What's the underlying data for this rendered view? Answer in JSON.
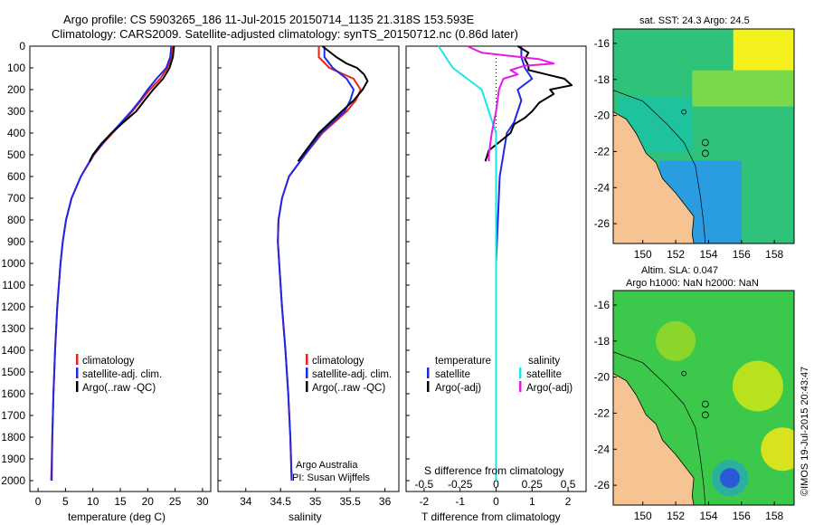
{
  "header": {
    "line1": "Argo profile: CS 5903265_186 11-Jul-2015 20150714_1135 21.318S 153.593E",
    "line2": "Climatology: CARS2009. Satellite-adjusted climatology: synTS_20150712.nc (0.86d later)"
  },
  "colors": {
    "climatology": "#e6231e",
    "satellite": "#1e28e6",
    "argo": "#000000",
    "sal_satellite": "#19e6e6",
    "sal_argo": "#e619e6"
  },
  "chart_data": [
    {
      "type": "line",
      "id": "temperature",
      "xlabel": "temperature (deg C)",
      "ylabel": "",
      "xlim": [
        -1.5,
        31.5
      ],
      "ylim": [
        2060,
        0
      ],
      "xticks": [
        "0",
        "5",
        "10",
        "15",
        "20",
        "25",
        "30"
      ],
      "yticks": [
        "0",
        "100",
        "200",
        "300",
        "400",
        "500",
        "600",
        "700",
        "800",
        "900",
        "1000",
        "1100",
        "1200",
        "1300",
        "1400",
        "1500",
        "1600",
        "1700",
        "1800",
        "1900",
        "2000"
      ],
      "legend": [
        "climatology",
        "satellite-adj. clim.",
        "Argo(..raw -QC)"
      ],
      "series": [
        {
          "name": "climatology",
          "depth": [
            0,
            50,
            100,
            150,
            200,
            250,
            300,
            350,
            400,
            450,
            500,
            600,
            700,
            800,
            900,
            1000,
            1200,
            1400,
            1600,
            1800,
            2000
          ],
          "values": [
            24.6,
            24.4,
            23.6,
            22.3,
            20.4,
            18.8,
            17.2,
            15.4,
            13.6,
            11.8,
            10.2,
            7.8,
            6.1,
            5.1,
            4.5,
            4.1,
            3.5,
            3.1,
            2.8,
            2.6,
            2.4
          ]
        },
        {
          "name": "satellite-adj. clim.",
          "depth": [
            0,
            50,
            100,
            150,
            200,
            250,
            300,
            350,
            400,
            450,
            500,
            600,
            700,
            800,
            900,
            1000,
            1200,
            1400,
            1600,
            1800,
            2000
          ],
          "values": [
            24.3,
            24.1,
            23.4,
            21.6,
            20.0,
            18.6,
            17.0,
            15.2,
            13.4,
            11.7,
            10.1,
            7.8,
            6.1,
            5.1,
            4.5,
            4.1,
            3.5,
            3.1,
            2.8,
            2.6,
            2.5
          ]
        },
        {
          "name": "Argo(..raw -QC)",
          "depth": [
            0,
            50,
            100,
            150,
            200,
            250,
            300,
            350,
            400,
            450,
            500,
            530
          ],
          "values": [
            24.8,
            24.6,
            24.0,
            22.8,
            21.0,
            19.4,
            17.9,
            15.6,
            13.4,
            11.5,
            10.0,
            9.4
          ]
        }
      ]
    },
    {
      "type": "line",
      "id": "salinity",
      "xlabel": "salinity",
      "xlim": [
        33.6,
        36.2
      ],
      "ylim": [
        2060,
        0
      ],
      "xticks": [
        "34",
        "34.5",
        "35",
        "35.5",
        "36"
      ],
      "legend": [
        "climatology",
        "satellite-adj. clim.",
        "Argo(..raw -QC)"
      ],
      "series": [
        {
          "name": "climatology",
          "depth": [
            0,
            50,
            100,
            150,
            200,
            250,
            300,
            400,
            500,
            600,
            700,
            800,
            900,
            1000,
            1200,
            1400,
            1600,
            1800,
            2000
          ],
          "values": [
            35.05,
            35.05,
            35.2,
            35.55,
            35.65,
            35.58,
            35.45,
            35.1,
            34.85,
            34.62,
            34.52,
            34.47,
            34.46,
            34.48,
            34.52,
            34.57,
            34.61,
            34.64,
            34.66
          ]
        },
        {
          "name": "satellite-adj. clim.",
          "depth": [
            0,
            50,
            100,
            150,
            200,
            250,
            300,
            400,
            500,
            600,
            700,
            800,
            900,
            1000,
            1200,
            1400,
            1600,
            1800,
            2000
          ],
          "values": [
            35.13,
            35.13,
            35.25,
            35.45,
            35.55,
            35.5,
            35.42,
            35.08,
            34.85,
            34.62,
            34.52,
            34.47,
            34.46,
            34.48,
            34.52,
            34.57,
            34.61,
            34.64,
            34.66
          ]
        },
        {
          "name": "Argo(..raw -QC)",
          "depth": [
            0,
            50,
            80,
            100,
            130,
            160,
            200,
            250,
            300,
            400,
            500,
            530
          ],
          "values": [
            35.1,
            35.3,
            35.45,
            35.6,
            35.7,
            35.75,
            35.68,
            35.55,
            35.38,
            35.05,
            34.82,
            34.75
          ]
        }
      ]
    },
    {
      "type": "line",
      "id": "difference",
      "xlabel": "T difference from climatology",
      "xlabel2": "S difference from climatology",
      "xlim": [
        -2.5,
        2.5
      ],
      "ylim": [
        2060,
        0
      ],
      "xticks": [
        "-2",
        "-1",
        "0",
        "1",
        "2"
      ],
      "xticks2": [
        "-0.5",
        "-0.25",
        "0",
        "0.25",
        "0.5"
      ],
      "legend_titles": [
        "temperature",
        "salinity"
      ],
      "legend": [
        "satellite",
        "Argo(-adj)",
        "satellite",
        "Argo(-adj)"
      ],
      "series": [
        {
          "name": "T satellite",
          "depth": [
            0,
            50,
            100,
            150,
            200,
            250,
            300,
            350,
            400,
            500,
            600,
            800,
            1000,
            1500,
            2000
          ],
          "values": [
            0.7,
            0.7,
            0.8,
            1.0,
            0.6,
            0.7,
            0.6,
            0.5,
            0.3,
            0.2,
            0.1,
            0.05,
            0.0,
            0.0,
            0.0
          ]
        },
        {
          "name": "T Argo(-adj)",
          "depth": [
            0,
            30,
            60,
            90,
            110,
            130,
            150,
            180,
            200,
            220,
            260,
            300,
            330,
            360,
            400,
            440,
            480,
            530
          ],
          "values": [
            0.6,
            0.9,
            0.8,
            0.9,
            0.9,
            1.4,
            1.9,
            2.1,
            1.5,
            1.6,
            1.2,
            1.0,
            0.8,
            0.5,
            0.4,
            0.1,
            -0.2,
            -0.3
          ]
        },
        {
          "name": "S satellite",
          "depth": [
            0,
            50,
            100,
            150,
            200,
            300,
            400,
            500,
            600,
            800,
            1000,
            1500,
            2000
          ],
          "values": [
            -0.4,
            -0.35,
            -0.3,
            -0.2,
            -0.1,
            -0.05,
            0.0,
            0.0,
            0.0,
            0.0,
            0.0,
            0.0,
            0.0
          ]
        },
        {
          "name": "S Argo(-adj)",
          "depth": [
            0,
            30,
            60,
            80,
            90,
            110,
            130,
            150,
            200,
            300,
            400,
            500,
            530
          ],
          "values": [
            -0.2,
            -0.1,
            0.3,
            0.4,
            0.2,
            0.1,
            0.15,
            0.05,
            0.02,
            0.0,
            -0.03,
            -0.05,
            -0.05
          ]
        }
      ]
    }
  ],
  "panel_texts": {
    "org": "Argo Australia",
    "pi": "PI: Susan Wijffels"
  },
  "maps": {
    "sst_title": "sat. SST: 24.3 Argo: 24.5",
    "sla_title1": "Altim. SLA: 0.047",
    "sla_title2": "Argo h1000: NaN h2000: NaN",
    "lat_ticks": [
      "-16",
      "-18",
      "-20",
      "-22",
      "-24",
      "-26"
    ],
    "lon_ticks": [
      "150",
      "152",
      "154",
      "156",
      "158"
    ],
    "credit": "©IMOS 19-Jul-2015 20:43:47"
  }
}
